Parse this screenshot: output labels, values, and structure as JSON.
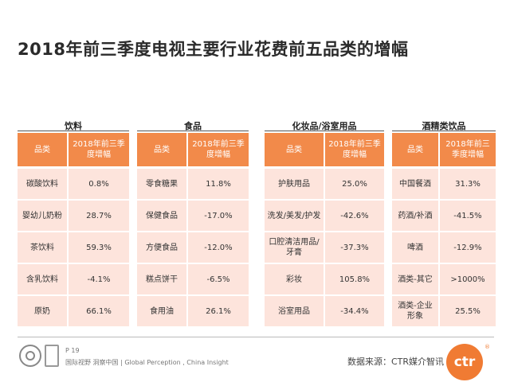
{
  "title": "2018年前三季度电视主要行业花费前五品类的增幅",
  "tables": [
    {
      "title": "饮料",
      "header": [
        "品类",
        "2018年前三季度增幅"
      ],
      "rows": [
        [
          "碳酸饮料",
          "0.8%"
        ],
        [
          "婴幼儿奶粉",
          "28.7%"
        ],
        [
          "茶饮料",
          "59.3%"
        ],
        [
          "含乳饮料",
          "-4.1%"
        ],
        [
          "原奶",
          "66.1%"
        ]
      ]
    },
    {
      "title": "食品",
      "header": [
        "品类",
        "2018年前三季度增幅"
      ],
      "rows": [
        [
          "零食糖果",
          "11.8%"
        ],
        [
          "保健食品",
          "-17.0%"
        ],
        [
          "方便食品",
          "-12.0%"
        ],
        [
          "糕点饼干",
          "-6.5%"
        ],
        [
          "食用油",
          "26.1%"
        ]
      ]
    },
    {
      "title": "化妆品/浴室用品",
      "header": [
        "品类",
        "2018年前三季度增幅"
      ],
      "rows": [
        [
          "护肤用品",
          "25.0%"
        ],
        [
          "洗发/美发/护发",
          "-42.6%"
        ],
        [
          "口腔清洁用品/牙膏",
          "-37.3%"
        ],
        [
          "彩妆",
          "105.8%"
        ],
        [
          "浴室用品",
          "-34.4%"
        ]
      ]
    },
    {
      "title": "酒精类饮品",
      "header": [
        "品类",
        "2018年前三季度增幅"
      ],
      "rows": [
        [
          "中国餐酒",
          "31.3%"
        ],
        [
          "药酒/补酒",
          "-41.5%"
        ],
        [
          "啤酒",
          "-12.9%"
        ],
        [
          "酒类-其它",
          ">1000%"
        ],
        [
          "酒类-企业形象",
          "25.5%"
        ]
      ]
    }
  ],
  "footer": {
    "page": "P 19",
    "slogan": "国际视野 洞察中国 | Global Perception , China Insight",
    "source": "数据来源：CTR媒介智讯",
    "logo_text": "ctr",
    "logo_reg": "®"
  },
  "colors": {
    "header_bg": "#f28a4a",
    "cell_bg": "#fde4dc",
    "logo": "#f07b33"
  }
}
